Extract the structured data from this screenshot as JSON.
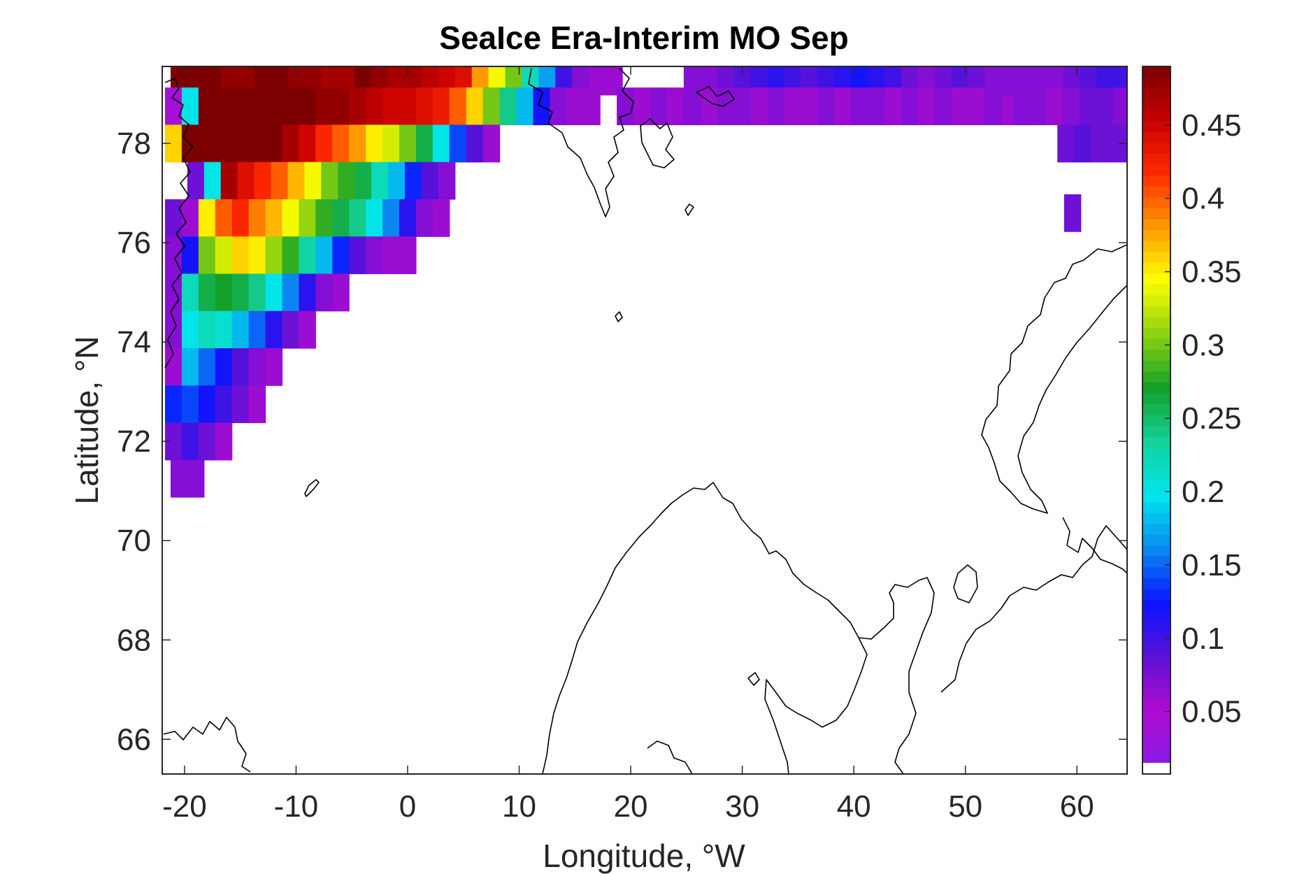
{
  "chart_data": {
    "type": "heatmap",
    "title": "SeaIce Era-Interim MO Sep",
    "xlabel": "Longitude, °W",
    "ylabel": "Latitude, °N",
    "xlim": [
      -22,
      64.5
    ],
    "ylim": [
      65.3,
      79.55
    ],
    "xticks": [
      -20,
      -10,
      0,
      10,
      20,
      30,
      40,
      50,
      60
    ],
    "yticks": [
      66,
      68,
      70,
      72,
      74,
      76,
      78
    ],
    "colorbar": {
      "clim": [
        0.015,
        0.49
      ],
      "ticks": [
        0.05,
        0.1,
        0.15,
        0.2,
        0.25,
        0.3,
        0.35,
        0.4,
        0.45
      ],
      "colormap": [
        "#8a1ae6",
        "#b00cd0",
        "#5a12d8",
        "#0a14ff",
        "#0a8af0",
        "#00e6ee",
        "#14d29a",
        "#14a028",
        "#8cd210",
        "#ffff00",
        "#ff9a00",
        "#ff2a00",
        "#c80000",
        "#7d0000"
      ]
    },
    "grid_cells": [
      {
        "lat": 79.35,
        "lon_start": -20.5,
        "values": [
          0.49,
          0.49,
          0.49,
          0.48,
          0.48,
          0.49,
          0.49,
          0.48,
          0.48,
          0.47,
          0.47,
          0.49,
          0.48,
          0.47,
          0.47,
          0.46,
          0.45,
          0.44,
          0.38,
          0.34,
          0.3,
          0.22,
          0.17,
          0.1,
          0.07,
          0.06,
          0.06
        ]
      },
      {
        "lat": 78.75,
        "lon_start": -21,
        "values": [
          0.04,
          0.2,
          0.49,
          0.49,
          0.49,
          0.49,
          0.49,
          0.49,
          0.49,
          0.48,
          0.48,
          0.47,
          0.46,
          0.45,
          0.45,
          0.44,
          0.43,
          0.4,
          0.36,
          0.3,
          0.24,
          0.18,
          0.12,
          0.07,
          0.06,
          0.06
        ]
      },
      {
        "lat": 78.0,
        "lon_start": -21,
        "values": [
          0.36,
          0.49,
          0.49,
          0.49,
          0.49,
          0.49,
          0.49,
          0.47,
          0.45,
          0.42,
          0.4,
          0.38,
          0.35,
          0.33,
          0.3,
          0.26,
          0.2,
          0.14,
          0.09,
          0.06
        ]
      },
      {
        "lat": 77.25,
        "lon_start": -19,
        "values": [
          0.08,
          0.2,
          0.47,
          0.44,
          0.42,
          0.4,
          0.37,
          0.34,
          0.3,
          0.28,
          0.26,
          0.22,
          0.18,
          0.13,
          0.09,
          0.07
        ]
      },
      {
        "lat": 76.5,
        "lon_start": -21,
        "values": [
          0.08,
          0.06,
          0.35,
          0.4,
          0.42,
          0.39,
          0.37,
          0.34,
          0.31,
          0.28,
          0.26,
          0.24,
          0.2,
          0.16,
          0.11,
          0.07,
          0.06
        ]
      },
      {
        "lat": 75.75,
        "lon_start": -21,
        "values": [
          0.07,
          0.12,
          0.3,
          0.33,
          0.36,
          0.35,
          0.31,
          0.28,
          0.23,
          0.18,
          0.13,
          0.09,
          0.07,
          0.06,
          0.06
        ]
      },
      {
        "lat": 75.0,
        "lon_start": -21,
        "values": [
          0.07,
          0.22,
          0.26,
          0.27,
          0.26,
          0.24,
          0.2,
          0.16,
          0.11,
          0.07,
          0.06
        ]
      },
      {
        "lat": 74.25,
        "lon_start": -21,
        "values": [
          0.07,
          0.2,
          0.22,
          0.21,
          0.18,
          0.15,
          0.11,
          0.08,
          0.06
        ]
      },
      {
        "lat": 73.5,
        "lon_start": -21,
        "values": [
          0.06,
          0.18,
          0.15,
          0.12,
          0.09,
          0.07,
          0.06
        ]
      },
      {
        "lat": 72.75,
        "lon_start": -21,
        "values": [
          0.13,
          0.14,
          0.12,
          0.1,
          0.08,
          0.06
        ]
      },
      {
        "lat": 72.0,
        "lon_start": -21,
        "values": [
          0.08,
          0.1,
          0.08,
          0.06
        ]
      },
      {
        "lat": 71.25,
        "lon_start": -20.5,
        "values": [
          0.07,
          0.07
        ]
      },
      {
        "lat": 79.35,
        "lon_start": 25.5,
        "values": [
          0.07,
          0.07,
          0.08,
          0.09,
          0.1,
          0.11,
          0.1,
          0.09,
          0.1,
          0.11,
          0.12,
          0.11,
          0.1,
          0.08,
          0.07,
          0.08,
          0.09,
          0.08,
          0.07,
          0.07,
          0.07,
          0.07,
          0.07
        ]
      },
      {
        "lat": 78.75,
        "lon_start": 19.5,
        "values": [
          0.07,
          0.06,
          0.07,
          0.06,
          0.07,
          0.06,
          0.07,
          0.07,
          0.06,
          0.07,
          0.06,
          0.06,
          0.07,
          0.06,
          0.07,
          0.07,
          0.06,
          0.07,
          0.06,
          0.07,
          0.06,
          0.06,
          0.07,
          0.06,
          0.07
        ]
      },
      {
        "lat": 79.35,
        "lon_start": 53.5,
        "values": [
          0.07,
          0.07,
          0.07,
          0.07,
          0.08,
          0.09,
          0.1,
          0.1,
          0.11,
          0.12,
          0.13,
          0.14
        ]
      },
      {
        "lat": 78.75,
        "lon_start": 55,
        "values": [
          0.07,
          0.07,
          0.06,
          0.07,
          0.08,
          0.08,
          0.07,
          0.08,
          0.07,
          0.07
        ]
      },
      {
        "lat": 78.0,
        "lon_start": 59,
        "values": [
          0.08,
          0.09,
          0.08,
          0.08,
          0.08,
          0.08
        ]
      },
      {
        "lat": 76.6,
        "lon_start": 59.6,
        "values": [
          0.08
        ]
      }
    ]
  }
}
